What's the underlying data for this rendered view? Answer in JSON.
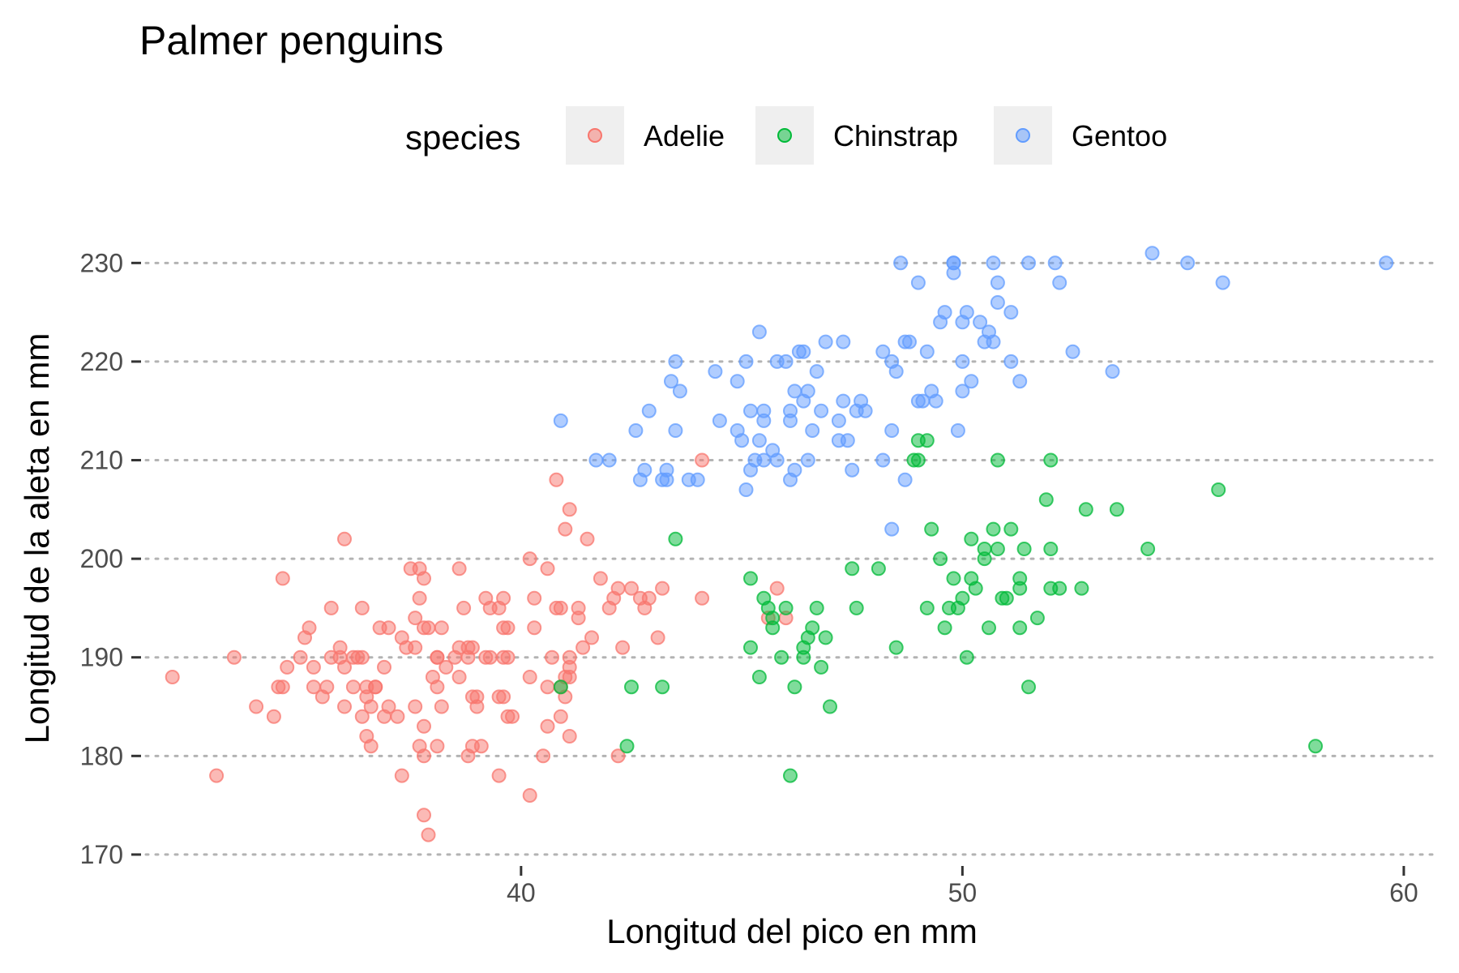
{
  "chart_data": {
    "type": "scatter",
    "title": "Palmer penguins",
    "xlabel": "Longitud del pico en mm",
    "ylabel": "Longitud de la aleta en mm",
    "xlim": [
      31.5,
      60.7
    ],
    "ylim": [
      169.5,
      232
    ],
    "x_ticks": [
      40,
      50,
      60
    ],
    "y_ticks": [
      170,
      180,
      190,
      200,
      210,
      220,
      230
    ],
    "grid": "horizontal-dotted",
    "legend": {
      "title": "species",
      "position": "top"
    },
    "point_opacity": 0.5,
    "series": [
      {
        "name": "Adelie",
        "color": "#F8766D",
        "points": [
          [
            32.1,
            188
          ],
          [
            33.1,
            178
          ],
          [
            33.5,
            190
          ],
          [
            34.0,
            185
          ],
          [
            34.4,
            184
          ],
          [
            34.6,
            187
          ],
          [
            34.6,
            198
          ],
          [
            34.7,
            189
          ],
          [
            35.0,
            190
          ],
          [
            35.1,
            192
          ],
          [
            35.2,
            193
          ],
          [
            35.3,
            187
          ],
          [
            35.5,
            186
          ],
          [
            35.7,
            190
          ],
          [
            35.7,
            195
          ],
          [
            35.9,
            191
          ],
          [
            36.0,
            185
          ],
          [
            36.0,
            189
          ],
          [
            36.0,
            202
          ],
          [
            36.2,
            187
          ],
          [
            36.2,
            190
          ],
          [
            36.3,
            190
          ],
          [
            36.4,
            184
          ],
          [
            36.4,
            190
          ],
          [
            36.5,
            187
          ],
          [
            36.5,
            182
          ],
          [
            36.6,
            181
          ],
          [
            36.6,
            185
          ],
          [
            36.7,
            187
          ],
          [
            36.8,
            193
          ],
          [
            36.9,
            189
          ],
          [
            37.0,
            185
          ],
          [
            37.2,
            184
          ],
          [
            37.3,
            178
          ],
          [
            37.3,
            192
          ],
          [
            37.4,
            191
          ],
          [
            37.5,
            199
          ],
          [
            37.6,
            191
          ],
          [
            37.6,
            194
          ],
          [
            37.7,
            181
          ],
          [
            37.7,
            199
          ],
          [
            37.8,
            174
          ],
          [
            37.8,
            180
          ],
          [
            37.8,
            183
          ],
          [
            37.8,
            198
          ],
          [
            37.9,
            172
          ],
          [
            38.0,
            188
          ],
          [
            38.1,
            181
          ],
          [
            38.1,
            190
          ],
          [
            38.2,
            185
          ],
          [
            38.3,
            189
          ],
          [
            38.5,
            190
          ],
          [
            38.6,
            191
          ],
          [
            38.6,
            188
          ],
          [
            38.6,
            199
          ],
          [
            38.7,
            195
          ],
          [
            38.8,
            180
          ],
          [
            38.8,
            190
          ],
          [
            38.9,
            181
          ],
          [
            38.9,
            191
          ],
          [
            39.0,
            185
          ],
          [
            39.0,
            186
          ],
          [
            39.1,
            181
          ],
          [
            39.2,
            190
          ],
          [
            39.2,
            196
          ],
          [
            39.3,
            190
          ],
          [
            39.5,
            178
          ],
          [
            39.5,
            186
          ],
          [
            39.6,
            186
          ],
          [
            39.6,
            190
          ],
          [
            39.7,
            184
          ],
          [
            39.7,
            190
          ],
          [
            39.7,
            193
          ],
          [
            39.8,
            184
          ],
          [
            40.2,
            176
          ],
          [
            40.2,
            188
          ],
          [
            40.3,
            196
          ],
          [
            40.5,
            180
          ],
          [
            40.6,
            183
          ],
          [
            40.6,
            187
          ],
          [
            40.6,
            199
          ],
          [
            40.7,
            190
          ],
          [
            40.8,
            195
          ],
          [
            40.9,
            184
          ],
          [
            40.9,
            187
          ],
          [
            41.1,
            182
          ],
          [
            41.1,
            188
          ],
          [
            41.1,
            189
          ],
          [
            41.1,
            190
          ],
          [
            41.1,
            205
          ],
          [
            41.3,
            194
          ],
          [
            41.3,
            195
          ],
          [
            41.4,
            191
          ],
          [
            41.5,
            202
          ],
          [
            41.6,
            192
          ],
          [
            41.8,
            198
          ],
          [
            42.0,
            195
          ],
          [
            42.1,
            196
          ],
          [
            42.2,
            180
          ],
          [
            42.2,
            197
          ],
          [
            42.3,
            191
          ],
          [
            42.5,
            197
          ],
          [
            42.7,
            196
          ],
          [
            42.8,
            195
          ],
          [
            42.9,
            196
          ],
          [
            43.1,
            192
          ],
          [
            43.2,
            197
          ],
          [
            44.1,
            210
          ],
          [
            44.1,
            196
          ],
          [
            45.6,
            194
          ],
          [
            45.8,
            197
          ],
          [
            46.0,
            194
          ],
          [
            41.0,
            203
          ],
          [
            40.9,
            195
          ],
          [
            40.8,
            208
          ],
          [
            40.3,
            193
          ],
          [
            39.6,
            196
          ],
          [
            39.6,
            193
          ],
          [
            39.5,
            195
          ],
          [
            38.9,
            186
          ],
          [
            38.8,
            191
          ],
          [
            38.2,
            193
          ],
          [
            37.9,
            193
          ],
          [
            37.8,
            193
          ],
          [
            37.6,
            185
          ],
          [
            37.0,
            193
          ],
          [
            36.9,
            184
          ],
          [
            36.7,
            187
          ],
          [
            35.9,
            190
          ],
          [
            35.6,
            187
          ],
          [
            35.3,
            189
          ],
          [
            34.5,
            187
          ],
          [
            36.4,
            195
          ],
          [
            37.7,
            196
          ],
          [
            38.1,
            190
          ],
          [
            39.3,
            195
          ],
          [
            40.2,
            200
          ],
          [
            41.0,
            186
          ],
          [
            38.1,
            187
          ],
          [
            36.5,
            186
          ],
          [
            41.0,
            188
          ]
        ]
      },
      {
        "name": "Chinstrap",
        "color": "#00BA38",
        "points": [
          [
            40.9,
            187
          ],
          [
            42.4,
            181
          ],
          [
            42.5,
            187
          ],
          [
            43.2,
            187
          ],
          [
            43.5,
            202
          ],
          [
            45.2,
            198
          ],
          [
            45.2,
            191
          ],
          [
            45.4,
            188
          ],
          [
            45.5,
            196
          ],
          [
            45.6,
            195
          ],
          [
            45.7,
            194
          ],
          [
            45.7,
            193
          ],
          [
            45.9,
            190
          ],
          [
            46.0,
            195
          ],
          [
            46.1,
            178
          ],
          [
            46.2,
            187
          ],
          [
            46.4,
            191
          ],
          [
            46.4,
            190
          ],
          [
            46.5,
            192
          ],
          [
            46.6,
            193
          ],
          [
            46.7,
            195
          ],
          [
            46.8,
            189
          ],
          [
            46.9,
            192
          ],
          [
            47.0,
            185
          ],
          [
            47.5,
            199
          ],
          [
            47.6,
            195
          ],
          [
            48.1,
            199
          ],
          [
            48.5,
            191
          ],
          [
            49.0,
            210
          ],
          [
            49.0,
            212
          ],
          [
            49.2,
            212
          ],
          [
            49.3,
            203
          ],
          [
            49.5,
            200
          ],
          [
            49.6,
            193
          ],
          [
            49.7,
            195
          ],
          [
            49.8,
            198
          ],
          [
            50.0,
            196
          ],
          [
            50.1,
            190
          ],
          [
            50.2,
            202
          ],
          [
            50.2,
            198
          ],
          [
            50.3,
            197
          ],
          [
            50.5,
            200
          ],
          [
            50.5,
            201
          ],
          [
            50.6,
            193
          ],
          [
            50.7,
            203
          ],
          [
            50.8,
            201
          ],
          [
            50.8,
            210
          ],
          [
            50.9,
            196
          ],
          [
            51.0,
            196
          ],
          [
            51.1,
            203
          ],
          [
            51.3,
            197
          ],
          [
            51.3,
            198
          ],
          [
            51.3,
            193
          ],
          [
            51.4,
            201
          ],
          [
            51.5,
            187
          ],
          [
            51.7,
            194
          ],
          [
            51.9,
            206
          ],
          [
            52.0,
            201
          ],
          [
            52.0,
            210
          ],
          [
            52.0,
            197
          ],
          [
            52.2,
            197
          ],
          [
            52.7,
            197
          ],
          [
            52.8,
            205
          ],
          [
            53.5,
            205
          ],
          [
            54.2,
            201
          ],
          [
            55.8,
            207
          ],
          [
            58.0,
            181
          ],
          [
            49.2,
            195
          ],
          [
            48.9,
            210
          ],
          [
            49.9,
            195
          ]
        ]
      },
      {
        "name": "Gentoo",
        "color": "#619CFF",
        "points": [
          [
            40.9,
            214
          ],
          [
            41.7,
            210
          ],
          [
            42.0,
            210
          ],
          [
            42.6,
            213
          ],
          [
            42.7,
            208
          ],
          [
            42.8,
            209
          ],
          [
            42.9,
            215
          ],
          [
            43.2,
            208
          ],
          [
            43.3,
            208
          ],
          [
            43.3,
            209
          ],
          [
            43.4,
            218
          ],
          [
            43.5,
            213
          ],
          [
            43.5,
            220
          ],
          [
            43.6,
            217
          ],
          [
            43.8,
            208
          ],
          [
            44.0,
            208
          ],
          [
            44.4,
            219
          ],
          [
            44.5,
            214
          ],
          [
            44.9,
            213
          ],
          [
            45.0,
            212
          ],
          [
            45.1,
            220
          ],
          [
            45.1,
            207
          ],
          [
            45.2,
            209
          ],
          [
            45.2,
            215
          ],
          [
            45.3,
            210
          ],
          [
            45.4,
            223
          ],
          [
            45.4,
            212
          ],
          [
            45.5,
            210
          ],
          [
            45.5,
            215
          ],
          [
            45.7,
            211
          ],
          [
            45.8,
            210
          ],
          [
            45.8,
            220
          ],
          [
            46.1,
            214
          ],
          [
            46.1,
            215
          ],
          [
            46.2,
            209
          ],
          [
            46.2,
            217
          ],
          [
            46.3,
            221
          ],
          [
            46.4,
            216
          ],
          [
            46.5,
            210
          ],
          [
            46.5,
            217
          ],
          [
            46.6,
            213
          ],
          [
            46.7,
            219
          ],
          [
            46.8,
            215
          ],
          [
            46.9,
            222
          ],
          [
            47.2,
            214
          ],
          [
            47.3,
            216
          ],
          [
            47.4,
            212
          ],
          [
            47.5,
            209
          ],
          [
            47.6,
            215
          ],
          [
            47.7,
            216
          ],
          [
            47.8,
            215
          ],
          [
            48.2,
            210
          ],
          [
            48.4,
            213
          ],
          [
            48.4,
            203
          ],
          [
            48.5,
            219
          ],
          [
            48.6,
            230
          ],
          [
            48.7,
            208
          ],
          [
            48.7,
            222
          ],
          [
            48.8,
            222
          ],
          [
            49.0,
            228
          ],
          [
            49.1,
            216
          ],
          [
            49.2,
            221
          ],
          [
            49.3,
            217
          ],
          [
            49.4,
            216
          ],
          [
            49.5,
            224
          ],
          [
            49.6,
            225
          ],
          [
            49.8,
            229
          ],
          [
            49.8,
            230
          ],
          [
            49.9,
            213
          ],
          [
            50.0,
            220
          ],
          [
            50.0,
            224
          ],
          [
            50.1,
            225
          ],
          [
            50.2,
            218
          ],
          [
            50.4,
            224
          ],
          [
            50.5,
            222
          ],
          [
            50.7,
            222
          ],
          [
            50.8,
            228
          ],
          [
            50.8,
            226
          ],
          [
            51.1,
            225
          ],
          [
            51.1,
            220
          ],
          [
            51.3,
            218
          ],
          [
            51.5,
            230
          ],
          [
            52.1,
            230
          ],
          [
            52.2,
            228
          ],
          [
            52.5,
            221
          ],
          [
            53.4,
            219
          ],
          [
            54.3,
            231
          ],
          [
            55.1,
            230
          ],
          [
            55.9,
            228
          ],
          [
            59.6,
            230
          ],
          [
            46.0,
            220
          ],
          [
            47.3,
            222
          ],
          [
            49.0,
            216
          ],
          [
            50.0,
            217
          ],
          [
            50.6,
            223
          ],
          [
            48.2,
            221
          ],
          [
            48.4,
            220
          ],
          [
            45.5,
            214
          ],
          [
            46.1,
            208
          ],
          [
            47.2,
            212
          ],
          [
            49.8,
            230
          ],
          [
            50.7,
            230
          ],
          [
            46.4,
            221
          ],
          [
            44.9,
            218
          ]
        ]
      }
    ]
  }
}
